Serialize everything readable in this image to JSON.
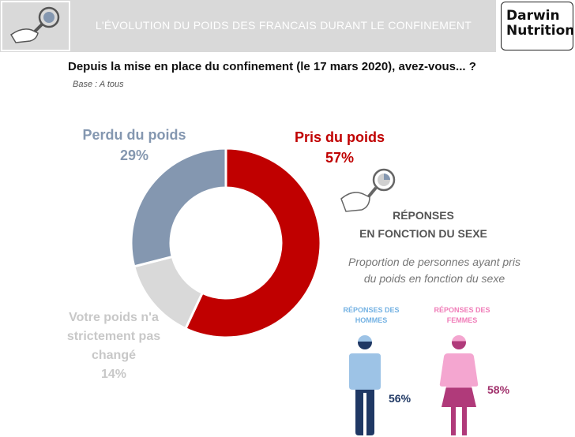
{
  "header": {
    "title": "L'ÉVOLUTION DU POIDS DES FRANCAIS DURANT LE CONFINEMENT"
  },
  "logo": {
    "line1": "Darwin",
    "line2": "Nutrition"
  },
  "question": "Depuis la mise en place du confinement (le 17 mars 2020), avez-vous... ?",
  "base": "Base : A tous",
  "chart_data": [
    {
      "type": "pie",
      "categories": [
        "Pris du poids",
        "Votre poids n'a strictement pas changé",
        "Perdu du poids"
      ],
      "values": [
        57,
        14,
        29
      ],
      "value_labels": [
        "57%",
        "14%",
        "29%"
      ],
      "colors": [
        "#c00000",
        "#d9d9d9",
        "#8497b0"
      ],
      "donut": true
    },
    {
      "type": "bar",
      "title": "Proportion de personnes ayant pris du poids en fonction du sexe",
      "categories": [
        "RÉPONSES DES HOMMES",
        "RÉPONSES DES FEMMES"
      ],
      "values": [
        56,
        58
      ],
      "value_labels": [
        "56%",
        "58%"
      ],
      "colors": [
        "#9dc3e6",
        "#f4a6d0"
      ]
    }
  ],
  "labels": {
    "lost": {
      "name": "Perdu du poids",
      "value": "29%"
    },
    "gain": {
      "name": "Pris du poids",
      "value": "57%"
    },
    "same": {
      "line1": "Votre poids n'a",
      "line2": "strictement pas",
      "line3": "changé",
      "value": "14%"
    }
  },
  "gender": {
    "title_line1": "RÉPONSES",
    "title_line2": "EN FONCTION DU SEXE",
    "subtitle_line1": "Proportion de personnes ayant pris",
    "subtitle_line2": "du poids en fonction du sexe",
    "men_head_line1": "RÉPONSES DES",
    "men_head_line2": "HOMMES",
    "women_head_line1": "RÉPONSES DES",
    "women_head_line2": "FEMMES",
    "men_value": "56%",
    "women_value": "58%"
  }
}
